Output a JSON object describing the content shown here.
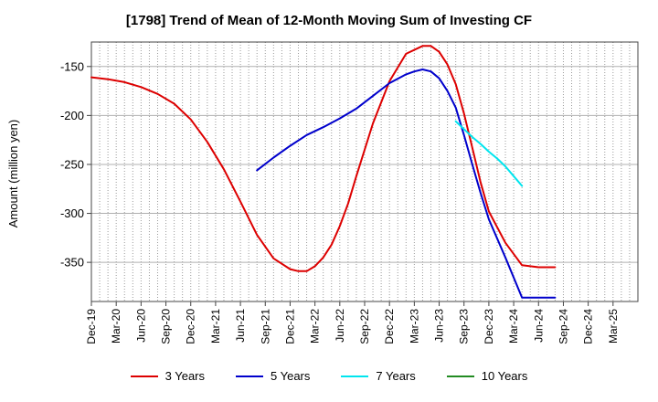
{
  "chart_data": {
    "type": "line",
    "title": "[1798]  Trend of Mean of 12-Month Moving Sum of Investing CF",
    "xlabel": "",
    "ylabel": "Amount (million yen)",
    "ylim": [
      -390,
      -125
    ],
    "yticks": [
      -150,
      -200,
      -250,
      -300,
      -350
    ],
    "xlim": [
      0,
      66
    ],
    "tick_labels": [
      "Dec-19",
      "Mar-20",
      "Jun-20",
      "Sep-20",
      "Dec-20",
      "Mar-21",
      "Jun-21",
      "Sep-21",
      "Dec-21",
      "Mar-22",
      "Jun-22",
      "Sep-22",
      "Dec-22",
      "Mar-23",
      "Jun-23",
      "Sep-23",
      "Dec-23",
      "Mar-24",
      "Jun-24",
      "Sep-24",
      "Dec-24",
      "Mar-25"
    ],
    "grid": true,
    "legend_position": "bottom",
    "series": [
      {
        "name": "3 Years",
        "color": "#dd0000",
        "x": [
          0,
          2,
          4,
          6,
          8,
          10,
          12,
          14,
          16,
          18,
          20,
          22,
          24,
          25,
          26,
          27,
          28,
          29,
          30,
          31,
          32,
          34,
          36,
          38,
          40,
          41,
          42,
          43,
          44,
          45,
          46,
          47,
          48,
          50,
          52,
          54,
          56
        ],
        "y": [
          -161,
          -163,
          -166,
          -171,
          -178,
          -188,
          -204,
          -227,
          -255,
          -288,
          -322,
          -346,
          -357,
          -359,
          -359,
          -354,
          -345,
          -332,
          -313,
          -290,
          -262,
          -208,
          -165,
          -137,
          -129,
          -129,
          -135,
          -148,
          -168,
          -198,
          -233,
          -268,
          -298,
          -330,
          -353,
          -355,
          -355
        ]
      },
      {
        "name": "5 Years",
        "color": "#0000cc",
        "x": [
          20,
          22,
          24,
          26,
          28,
          30,
          32,
          34,
          36,
          38,
          39,
          40,
          41,
          42,
          43,
          44,
          45,
          46,
          47,
          48,
          50,
          52,
          54,
          56
        ],
        "y": [
          -256,
          -243,
          -231,
          -220,
          -212,
          -203,
          -193,
          -180,
          -167,
          -158,
          -155,
          -153,
          -155,
          -162,
          -175,
          -192,
          -220,
          -250,
          -279,
          -306,
          -345,
          -386,
          -386,
          -386
        ]
      },
      {
        "name": "7 Years",
        "color": "#00e5ee",
        "x": [
          44,
          45,
          46,
          47,
          48,
          49,
          50,
          51,
          52
        ],
        "y": [
          -206,
          -214,
          -222,
          -229,
          -237,
          -244,
          -252,
          -262,
          -272
        ]
      },
      {
        "name": "10 Years",
        "color": "#228b22",
        "x": [],
        "y": []
      }
    ]
  }
}
